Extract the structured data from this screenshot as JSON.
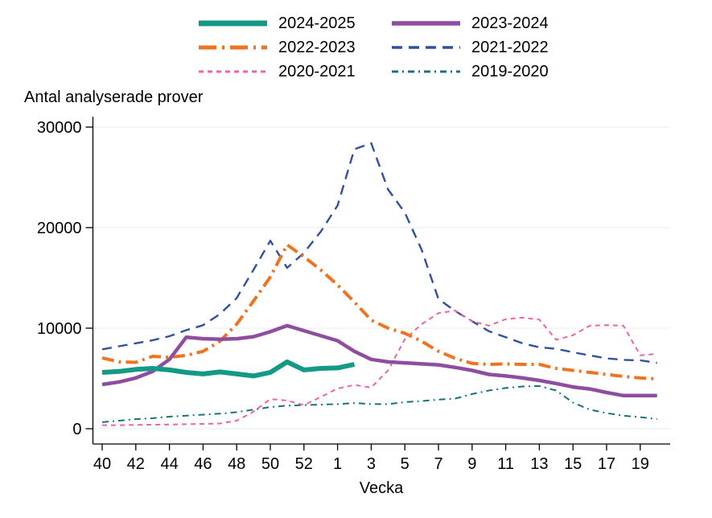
{
  "figure": {
    "title": "Antal analyserade prover",
    "xlabel": "Vecka"
  },
  "chart_data": {
    "type": "line",
    "title": "Antal analyserade prover",
    "xlabel": "Vecka",
    "ylabel": "",
    "ylim": [
      0,
      30000
    ],
    "y_ticks": [
      0,
      10000,
      20000,
      30000
    ],
    "grid": "horizontal",
    "grid_color": "#e5edf2",
    "axis_color": "#000000",
    "legend_position": "top",
    "categories": [
      "40",
      "41",
      "42",
      "43",
      "44",
      "45",
      "46",
      "47",
      "48",
      "49",
      "50",
      "51",
      "52",
      "53",
      "1",
      "2",
      "3",
      "4",
      "5",
      "6",
      "7",
      "8",
      "9",
      "10",
      "11",
      "12",
      "13",
      "14",
      "15",
      "16",
      "17",
      "18",
      "19",
      "20"
    ],
    "x_labeled_slots": [
      0,
      2,
      4,
      6,
      8,
      10,
      12,
      14,
      16,
      18,
      20,
      22,
      24,
      26,
      28,
      30,
      32
    ],
    "series": [
      {
        "name": "2024-2025",
        "color": "#149986",
        "width": 6,
        "dash": "",
        "legend_dash": "",
        "values": [
          5600,
          5700,
          5900,
          6000,
          5850,
          5600,
          5450,
          5650,
          5450,
          5250,
          5600,
          6650,
          5850,
          6000,
          6050,
          6400
        ]
      },
      {
        "name": "2023-2024",
        "color": "#8f4d9f",
        "width": 4.5,
        "dash": "",
        "legend_dash": "",
        "values": [
          4400,
          4650,
          5050,
          5700,
          6900,
          9100,
          8950,
          8900,
          8950,
          9150,
          9650,
          10250,
          9750,
          9250,
          8750,
          7700,
          6900,
          6650,
          6550,
          6450,
          6350,
          6100,
          5800,
          5400,
          5250,
          5050,
          4800,
          4500,
          4150,
          3950,
          3600,
          3300,
          3300,
          3300
        ]
      },
      {
        "name": "2022-2023",
        "color": "#ef7421",
        "width": 4,
        "dash": "15 6 3 6",
        "legend_dash": "22 7 3 7",
        "values": [
          7050,
          6650,
          6600,
          7200,
          7100,
          7300,
          7700,
          8700,
          10400,
          12700,
          15100,
          18300,
          17100,
          15800,
          14300,
          12600,
          10800,
          10000,
          9500,
          8700,
          7700,
          7000,
          6500,
          6400,
          6450,
          6400,
          6400,
          6000,
          5800,
          5600,
          5400,
          5200,
          5050,
          4950
        ]
      },
      {
        "name": "2021-2022",
        "color": "#3050a0",
        "width": 2.4,
        "dash": "12 8",
        "legend_dash": "13 8",
        "values": [
          7900,
          8200,
          8500,
          8800,
          9200,
          9800,
          10300,
          11400,
          13000,
          15800,
          18700,
          16000,
          17500,
          19600,
          22200,
          27800,
          28400,
          23800,
          21500,
          17800,
          12900,
          11700,
          10700,
          9700,
          9100,
          8500,
          8100,
          7950,
          7600,
          7300,
          7000,
          6850,
          6800,
          6550
        ]
      },
      {
        "name": "2020-2021",
        "color": "#ee64a5",
        "width": 2,
        "dash": "6 5",
        "legend_dash": "6 5",
        "values": [
          350,
          350,
          380,
          400,
          420,
          450,
          480,
          520,
          800,
          1700,
          2950,
          2800,
          2350,
          3150,
          4000,
          4350,
          4100,
          5800,
          8900,
          10400,
          11500,
          11750,
          10700,
          10250,
          10900,
          11050,
          10850,
          8850,
          9300,
          10250,
          10300,
          10250,
          7300,
          7450
        ]
      },
      {
        "name": "2019-2020",
        "color": "#16737c",
        "width": 2,
        "dash": "8 5 2 5",
        "legend_dash": "8 5 2 5",
        "values": [
          650,
          800,
          950,
          1050,
          1200,
          1300,
          1400,
          1500,
          1650,
          1900,
          2150,
          2300,
          2350,
          2400,
          2450,
          2550,
          2450,
          2450,
          2650,
          2750,
          2900,
          3000,
          3450,
          3800,
          4050,
          4200,
          4250,
          3800,
          2600,
          1900,
          1550,
          1300,
          1150,
          950
        ]
      }
    ],
    "draw_order": [
      5,
      3,
      4,
      2,
      1,
      0
    ]
  }
}
